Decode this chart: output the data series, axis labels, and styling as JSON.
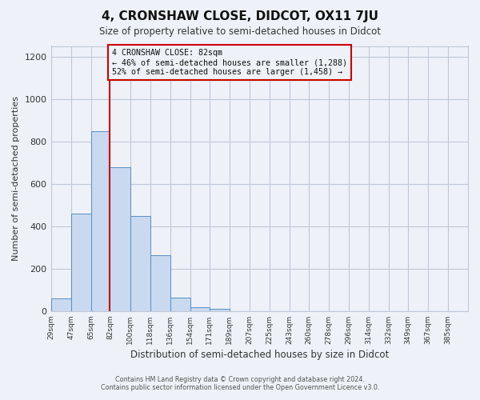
{
  "title": "4, CRONSHAW CLOSE, DIDCOT, OX11 7JU",
  "subtitle": "Size of property relative to semi-detached houses in Didcot",
  "xlabel": "Distribution of semi-detached houses by size in Didcot",
  "ylabel": "Number of semi-detached properties",
  "bar_values": [
    60,
    460,
    850,
    680,
    450,
    265,
    65,
    20,
    10,
    0,
    0,
    0,
    0,
    0,
    0,
    0,
    0,
    0,
    0,
    0,
    0
  ],
  "bin_labels": [
    "29sqm",
    "47sqm",
    "65sqm",
    "82sqm",
    "100sqm",
    "118sqm",
    "136sqm",
    "154sqm",
    "171sqm",
    "189sqm",
    "207sqm",
    "225sqm",
    "243sqm",
    "260sqm",
    "278sqm",
    "296sqm",
    "314sqm",
    "332sqm",
    "349sqm",
    "367sqm",
    "385sqm"
  ],
  "bin_starts": [
    29,
    47,
    65,
    82,
    100,
    118,
    136,
    154,
    171,
    189,
    207,
    225,
    243,
    260,
    278,
    296,
    314,
    332,
    349,
    367,
    385
  ],
  "bar_color": "#c8d9f0",
  "bar_edge_color": "#5a8fc3",
  "grid_color": "#c0c8d8",
  "background_color": "#eef2f8",
  "property_line_x": 82,
  "property_line_color": "#cc0000",
  "annotation_box_color": "#cc0000",
  "annotation_text_line1": "4 CRONSHAW CLOSE: 82sqm",
  "annotation_text_line2": "← 46% of semi-detached houses are smaller (1,288)",
  "annotation_text_line3": "52% of semi-detached houses are larger (1,458) →",
  "ylim": [
    0,
    1250
  ],
  "yticks": [
    0,
    200,
    400,
    600,
    800,
    1000,
    1200
  ],
  "footer_line1": "Contains HM Land Registry data © Crown copyright and database right 2024.",
  "footer_line2": "Contains public sector information licensed under the Open Government Licence v3.0."
}
